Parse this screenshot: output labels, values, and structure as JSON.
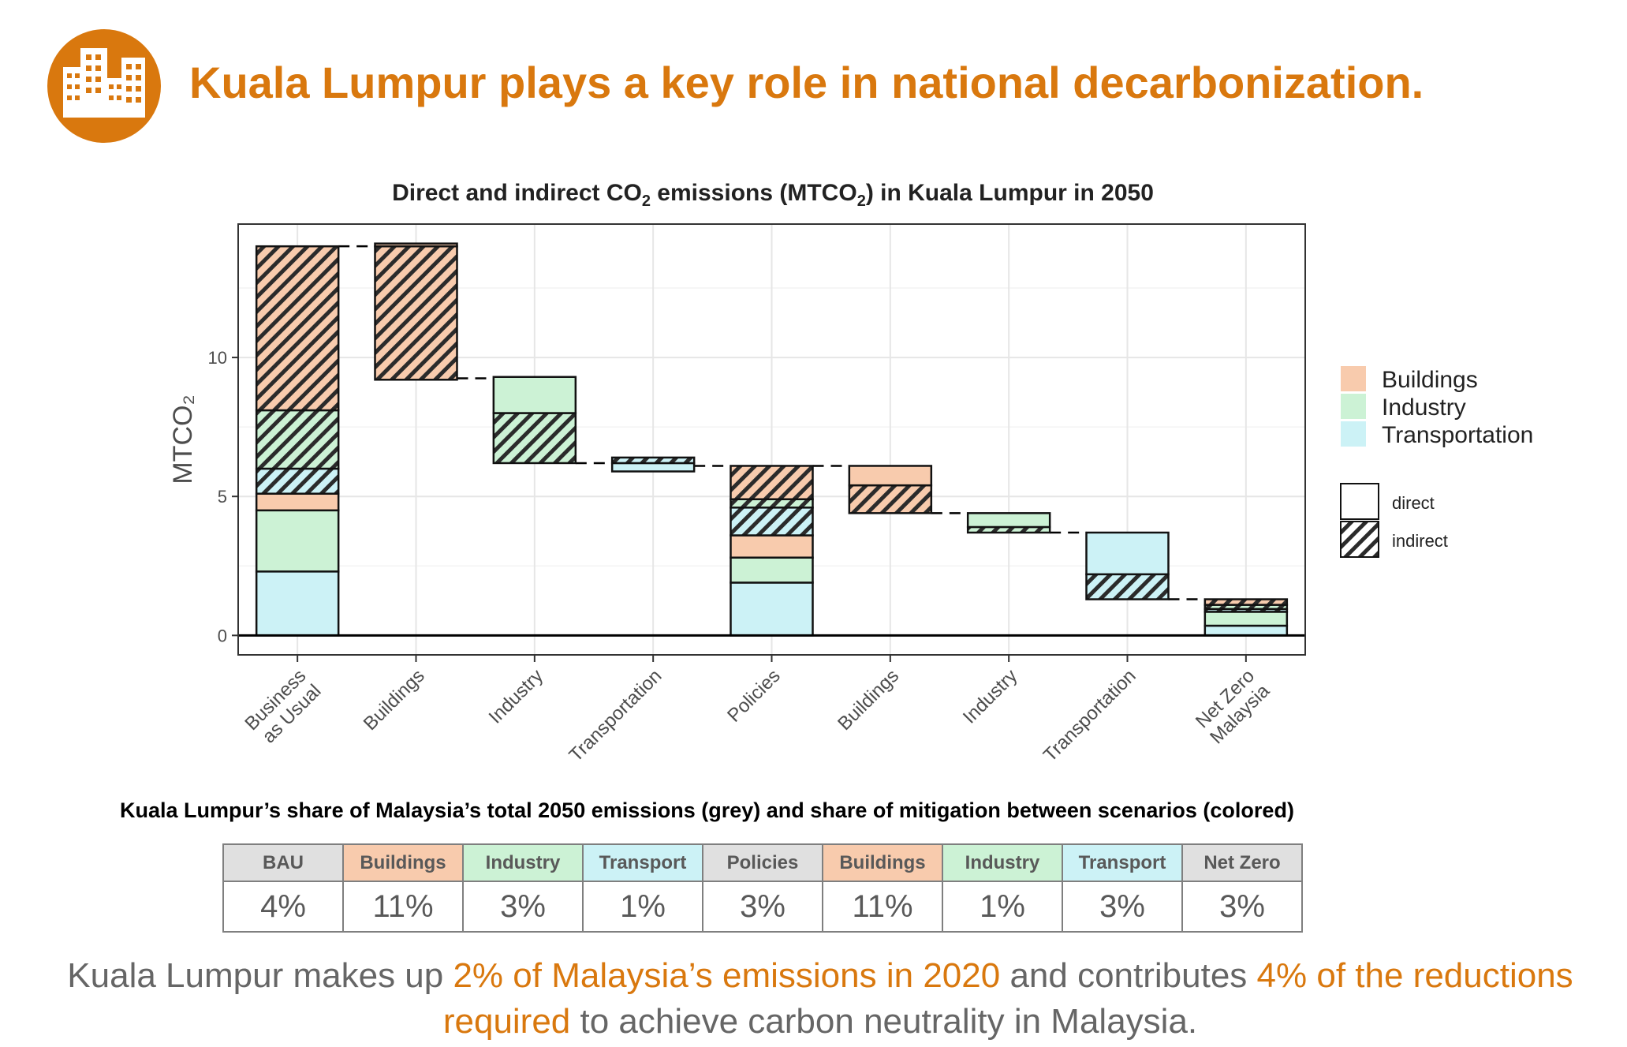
{
  "header": {
    "icon": "buildings-icon",
    "accent_color": "#D9780E",
    "title": "Kuala Lumpur plays a key role in national decarbonization."
  },
  "chart_title": {
    "pre": "Direct and indirect CO",
    "sub1": "2",
    "mid": " emissions (MTCO",
    "sub2": "2",
    "post": ") in Kuala Lumpur in 2050"
  },
  "chart_data": {
    "type": "bar",
    "subtype": "waterfall-stacked",
    "ylabel": "MTCO₂",
    "ylim": [
      -0.7,
      14.8
    ],
    "yticks": [
      0,
      5,
      10
    ],
    "grid": true,
    "legend_placement": "right",
    "categories": [
      "Business as Usual",
      "Buildings",
      "Industry",
      "Transportation",
      "Policies",
      "Buildings",
      "Industry",
      "Transportation",
      "Net Zero Malaysia"
    ],
    "category_label_lines": [
      [
        "Business",
        "as Usual"
      ],
      [
        "Buildings"
      ],
      [
        "Industry"
      ],
      [
        "Transportation"
      ],
      [
        "Policies"
      ],
      [
        "Buildings"
      ],
      [
        "Industry"
      ],
      [
        "Transportation"
      ],
      [
        "Net Zero",
        "Malaysia"
      ]
    ],
    "legend_sectors": [
      "Buildings",
      "Industry",
      "Transportation"
    ],
    "legend_types": [
      "direct",
      "indirect"
    ],
    "colors": {
      "Buildings": "#F8CBAD",
      "Industry": "#CCF2D5",
      "Transportation": "#CCF2F6"
    },
    "bars": [
      {
        "segments": [
          {
            "sector": "Transportation",
            "type": "direct",
            "from": 0,
            "to": 2.3
          },
          {
            "sector": "Industry",
            "type": "direct",
            "from": 2.3,
            "to": 4.5
          },
          {
            "sector": "Buildings",
            "type": "direct",
            "from": 4.5,
            "to": 5.1
          },
          {
            "sector": "Transportation",
            "type": "indirect",
            "from": 5.1,
            "to": 6.0
          },
          {
            "sector": "Industry",
            "type": "indirect",
            "from": 6.0,
            "to": 8.1
          },
          {
            "sector": "Buildings",
            "type": "indirect",
            "from": 8.1,
            "to": 14.0
          }
        ]
      },
      {
        "segments": [
          {
            "sector": "Buildings",
            "type": "indirect",
            "from": 9.2,
            "to": 14.0
          },
          {
            "sector": "Buildings",
            "type": "direct",
            "from": 14.0,
            "to": 14.1
          }
        ]
      },
      {
        "segments": [
          {
            "sector": "Industry",
            "type": "indirect",
            "from": 6.2,
            "to": 8.0
          },
          {
            "sector": "Industry",
            "type": "direct",
            "from": 8.0,
            "to": 9.3
          }
        ]
      },
      {
        "segments": [
          {
            "sector": "Transportation",
            "type": "direct",
            "from": 5.9,
            "to": 6.2
          },
          {
            "sector": "Transportation",
            "type": "indirect",
            "from": 6.2,
            "to": 6.4
          }
        ]
      },
      {
        "segments": [
          {
            "sector": "Transportation",
            "type": "direct",
            "from": 0,
            "to": 1.9
          },
          {
            "sector": "Industry",
            "type": "direct",
            "from": 1.9,
            "to": 2.8
          },
          {
            "sector": "Buildings",
            "type": "direct",
            "from": 2.8,
            "to": 3.6
          },
          {
            "sector": "Transportation",
            "type": "indirect",
            "from": 3.6,
            "to": 4.6
          },
          {
            "sector": "Industry",
            "type": "indirect",
            "from": 4.6,
            "to": 4.9
          },
          {
            "sector": "Buildings",
            "type": "indirect",
            "from": 4.9,
            "to": 6.1
          }
        ]
      },
      {
        "segments": [
          {
            "sector": "Buildings",
            "type": "indirect",
            "from": 4.4,
            "to": 5.4
          },
          {
            "sector": "Buildings",
            "type": "direct",
            "from": 5.4,
            "to": 6.1
          }
        ]
      },
      {
        "segments": [
          {
            "sector": "Industry",
            "type": "indirect",
            "from": 3.7,
            "to": 3.9
          },
          {
            "sector": "Industry",
            "type": "direct",
            "from": 3.9,
            "to": 4.4
          }
        ]
      },
      {
        "segments": [
          {
            "sector": "Transportation",
            "type": "indirect",
            "from": 1.3,
            "to": 2.2
          },
          {
            "sector": "Transportation",
            "type": "direct",
            "from": 2.2,
            "to": 3.7
          }
        ]
      },
      {
        "segments": [
          {
            "sector": "Transportation",
            "type": "direct",
            "from": 0,
            "to": 0.35
          },
          {
            "sector": "Industry",
            "type": "direct",
            "from": 0.35,
            "to": 0.85
          },
          {
            "sector": "Transportation",
            "type": "indirect",
            "from": 0.85,
            "to": 0.95
          },
          {
            "sector": "Industry",
            "type": "indirect",
            "from": 0.95,
            "to": 1.1
          },
          {
            "sector": "Buildings",
            "type": "indirect",
            "from": 1.1,
            "to": 1.3
          }
        ]
      }
    ],
    "connectors": [
      {
        "from_bar": 0,
        "to_bar": 1,
        "value": 14.0
      },
      {
        "from_bar": 1,
        "to_bar": 2,
        "value": 9.25
      },
      {
        "from_bar": 2,
        "to_bar": 3,
        "value": 6.2
      },
      {
        "from_bar": 3,
        "to_bar": 4,
        "value": 6.1
      },
      {
        "from_bar": 4,
        "to_bar": 5,
        "value": 6.1
      },
      {
        "from_bar": 5,
        "to_bar": 6,
        "value": 4.4
      },
      {
        "from_bar": 6,
        "to_bar": 7,
        "value": 3.7
      },
      {
        "from_bar": 7,
        "to_bar": 8,
        "value": 1.3
      }
    ]
  },
  "share_table": {
    "title": "Kuala Lumpur’s share of Malaysia’s total 2050 emissions (grey) and share of mitigation between scenarios (colored)",
    "headers": [
      "BAU",
      "Buildings",
      "Industry",
      "Transport",
      "Policies",
      "Buildings",
      "Industry",
      "Transport",
      "Net Zero"
    ],
    "header_colors": [
      "#E0E0E0",
      "#F8CBAD",
      "#CCF2D5",
      "#CCF2F6",
      "#E0E0E0",
      "#F8CBAD",
      "#CCF2D5",
      "#CCF2F6",
      "#E0E0E0"
    ],
    "values": [
      "4%",
      "11%",
      "3%",
      "1%",
      "3%",
      "11%",
      "1%",
      "3%",
      "3%"
    ]
  },
  "footer": {
    "part1": "Kuala Lumpur makes up ",
    "highlight1": "2% of Malaysia’s emissions in 2020",
    "part2": " and contributes ",
    "highlight2": "4% of the reductions required",
    "part3": " to achieve carbon neutrality in Malaysia."
  }
}
